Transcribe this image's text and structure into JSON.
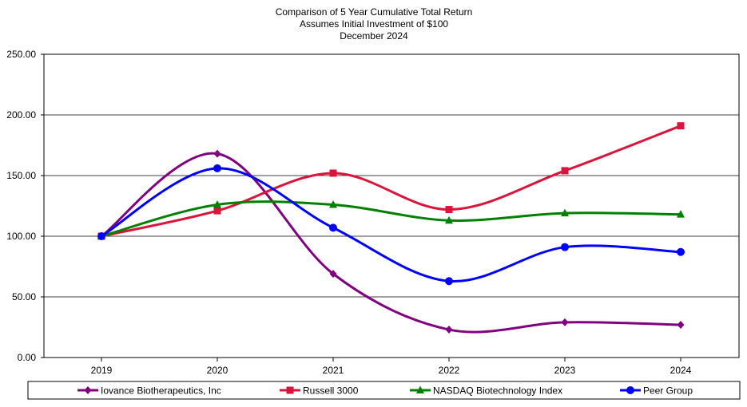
{
  "chart_data": {
    "type": "line",
    "title_lines": [
      "Comparison of 5 Year Cumulative Total Return",
      "Assumes Initial Investment of $100",
      "December 2024"
    ],
    "categories": [
      "2019",
      "2020",
      "2021",
      "2022",
      "2023",
      "2024"
    ],
    "ylim": [
      0,
      250
    ],
    "yticks": [
      0,
      50,
      100,
      150,
      200,
      250
    ],
    "ytick_labels": [
      "0.00",
      "50.00",
      "100.00",
      "150.00",
      "200.00",
      "250.00"
    ],
    "xlabel": "",
    "ylabel": "",
    "grid": true,
    "legend_position": "bottom",
    "series": [
      {
        "name": "Iovance Biotherapeutics, Inc",
        "color": "#800080",
        "marker": "diamond",
        "values": [
          100,
          168,
          69,
          23,
          29,
          27
        ]
      },
      {
        "name": "Russell 3000",
        "color": "#DC143C",
        "marker": "square",
        "values": [
          100,
          121,
          152,
          122,
          154,
          191
        ]
      },
      {
        "name": "NASDAQ Biotechnology Index",
        "color": "#008000",
        "marker": "triangle",
        "values": [
          100,
          126,
          126,
          113,
          119,
          118
        ]
      },
      {
        "name": "Peer Group",
        "color": "#0000FF",
        "marker": "circle",
        "values": [
          100,
          156,
          107,
          63,
          91,
          87
        ]
      }
    ]
  }
}
